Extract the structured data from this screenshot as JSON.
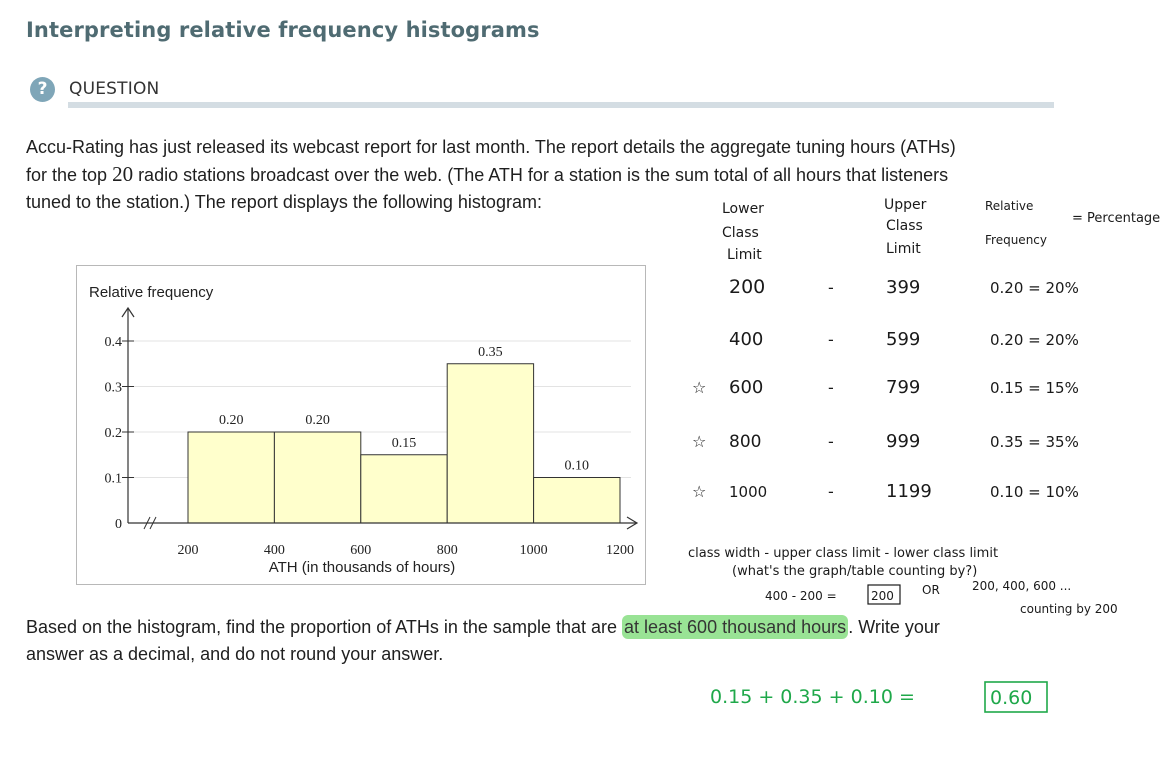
{
  "page": {
    "title": "Interpreting relative frequency histograms",
    "question_icon": "?",
    "question_label": "QUESTION"
  },
  "question": {
    "line1": "Accu-Rating has just released its webcast report for last month. The report details the aggregate tuning hours (ATHs)",
    "line2_pre": "for the top ",
    "line2_num": "20",
    "line2_post": " radio stations broadcast over the web. (The ATH for a station is the sum total of all hours that listeners",
    "line3": "tuned to the station.) The report displays the following histogram:",
    "ask_pre": "Based on the histogram, find the proportion of ATHs in the sample that are ",
    "ask_highlight": "at least 600 thousand hours",
    "ask_post": ". Write your",
    "ask_line2": "answer as a decimal, and do not round your answer."
  },
  "chart_data": {
    "type": "bar",
    "ylabel": "Relative frequency",
    "xlabel": "ATH (in thousands of hours)",
    "x_ticks": [
      200,
      400,
      600,
      800,
      1000,
      1200
    ],
    "y_ticks": [
      0,
      0.1,
      0.2,
      0.3,
      0.4
    ],
    "y_tick_labels": [
      "0",
      "0.1",
      "0.2",
      "0.3",
      "0.4"
    ],
    "ylim": [
      0,
      0.45
    ],
    "xlim": [
      200,
      1200
    ],
    "bins": [
      {
        "from": 200,
        "to": 400,
        "value": 0.2,
        "label": "0.20"
      },
      {
        "from": 400,
        "to": 600,
        "value": 0.2,
        "label": "0.20"
      },
      {
        "from": 600,
        "to": 800,
        "value": 0.15,
        "label": "0.15"
      },
      {
        "from": 800,
        "to": 1000,
        "value": 0.35,
        "label": "0.35"
      },
      {
        "from": 1000,
        "to": 1200,
        "value": 0.1,
        "label": "0.10"
      }
    ],
    "bar_color": "#ffffcc",
    "axis_break": true
  },
  "annotations": {
    "headers": {
      "lower": [
        "Lower",
        "Class",
        "Limit"
      ],
      "upper": [
        "Upper",
        "Class",
        "Limit"
      ],
      "relfreq": [
        "Relative",
        "Frequency"
      ],
      "equals_pct": "= Percentage"
    },
    "rows": [
      {
        "star": "",
        "lower": "200",
        "dash": "-",
        "upper": "399",
        "rel": "0.20 = 20%"
      },
      {
        "star": "",
        "lower": "400",
        "dash": "-",
        "upper": "599",
        "rel": "0.20 = 20%"
      },
      {
        "star": "☆",
        "lower": "600",
        "dash": "-",
        "upper": "799",
        "rel": "0.15 = 15%"
      },
      {
        "star": "☆",
        "lower": "800",
        "dash": "-",
        "upper": "999",
        "rel": "0.35 = 35%"
      },
      {
        "star": "☆",
        "lower": "1000",
        "dash": "-",
        "upper": "1199",
        "rel": "0.10 = 10%"
      }
    ],
    "class_width_1": "class width - upper class limit - lower class limit",
    "class_width_2": "(what's the graph/table counting by?)",
    "cw_calc": "400 - 200 =",
    "cw_box": "200",
    "cw_or": "OR",
    "cw_seq": "200, 400, 600 ...",
    "cw_counting": "counting by 200",
    "sum_expr": "0.15 + 0.35 + 0.10 =",
    "sum_answer": "0.60",
    "colors": {
      "ink": "#1a1a1a",
      "green": "#1fa84a",
      "highlight": "#8fe08a"
    }
  }
}
